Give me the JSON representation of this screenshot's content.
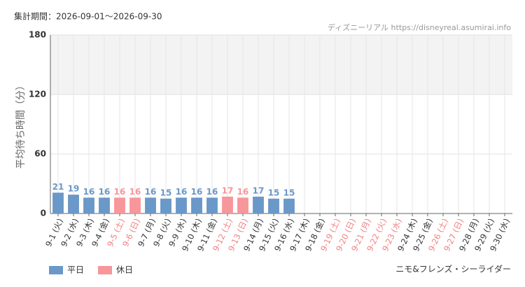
{
  "chart_data": {
    "type": "bar",
    "title": "集計期間：2026-09-01～2026-09-30",
    "source": "ディズニーリアル https://disneyreal.asumirai.info",
    "y_label": "平均待ち時間（分）",
    "attraction": "ニモ&フレンズ・シーライダー",
    "categories": [
      "9-1 (火)",
      "9-2 (水)",
      "9-3 (木)",
      "9-4 (金)",
      "9-5 (土)",
      "9-6 (日)",
      "9-7 (月)",
      "9-8 (火)",
      "9-9 (水)",
      "9-10 (木)",
      "9-11 (金)",
      "9-12 (土)",
      "9-13 (日)",
      "9-14 (月)",
      "9-15 (火)",
      "9-16 (水)",
      "9-17 (木)",
      "9-18 (金)",
      "9-19 (土)",
      "9-20 (日)",
      "9-21 (月)",
      "9-22 (火)",
      "9-23 (水)",
      "9-24 (木)",
      "9-25 (金)",
      "9-26 (土)",
      "9-27 (日)",
      "9-28 (月)",
      "9-29 (火)",
      "9-30 (水)"
    ],
    "category_colors": [
      "#333333",
      "#333333",
      "#333333",
      "#333333",
      "#f08080",
      "#f08080",
      "#333333",
      "#333333",
      "#333333",
      "#333333",
      "#333333",
      "#f08080",
      "#f08080",
      "#333333",
      "#333333",
      "#333333",
      "#333333",
      "#333333",
      "#f08080",
      "#f08080",
      "#f08080",
      "#f08080",
      "#f08080",
      "#333333",
      "#333333",
      "#f08080",
      "#f08080",
      "#333333",
      "#333333",
      "#333333"
    ],
    "series": [
      {
        "name": "平日",
        "color": "#6a98c8",
        "values": [
          21,
          19,
          16,
          16,
          null,
          null,
          16,
          15,
          16,
          16,
          16,
          null,
          null,
          17,
          15,
          15,
          null,
          null,
          null,
          null,
          null,
          null,
          null,
          null,
          null,
          null,
          null,
          null,
          null,
          null
        ]
      },
      {
        "name": "休日",
        "color": "#f7969b",
        "values": [
          null,
          null,
          null,
          null,
          16,
          16,
          null,
          null,
          null,
          null,
          null,
          17,
          16,
          null,
          null,
          null,
          null,
          null,
          null,
          null,
          null,
          null,
          null,
          null,
          null,
          null,
          null,
          null,
          null,
          null
        ]
      }
    ],
    "ylim": [
      0,
      180
    ],
    "yticks": [
      0,
      60,
      120,
      180
    ],
    "grid": true
  }
}
